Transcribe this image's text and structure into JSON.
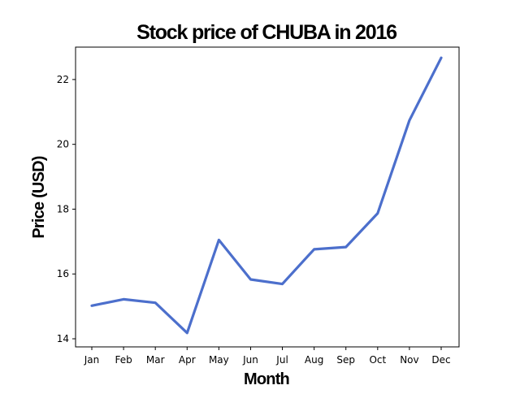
{
  "chart_data": {
    "type": "line",
    "title": "Stock price of CHUBA in 2016",
    "xlabel": "Month",
    "ylabel": "Price (USD)",
    "categories": [
      "Jan",
      "Feb",
      "Mar",
      "Apr",
      "May",
      "Jun",
      "Jul",
      "Aug",
      "Sep",
      "Oct",
      "Nov",
      "Dec"
    ],
    "series": [
      {
        "values": [
          15.02,
          15.22,
          15.11,
          14.18,
          17.05,
          15.83,
          15.69,
          16.76,
          16.83,
          17.87,
          20.74,
          22.67
        ]
      }
    ],
    "y_ticks": [
      14,
      16,
      18,
      20,
      22
    ],
    "ylim": [
      13.75,
      23.0
    ],
    "grid": false,
    "legend": "none",
    "line_color": "#4c6fcc"
  }
}
